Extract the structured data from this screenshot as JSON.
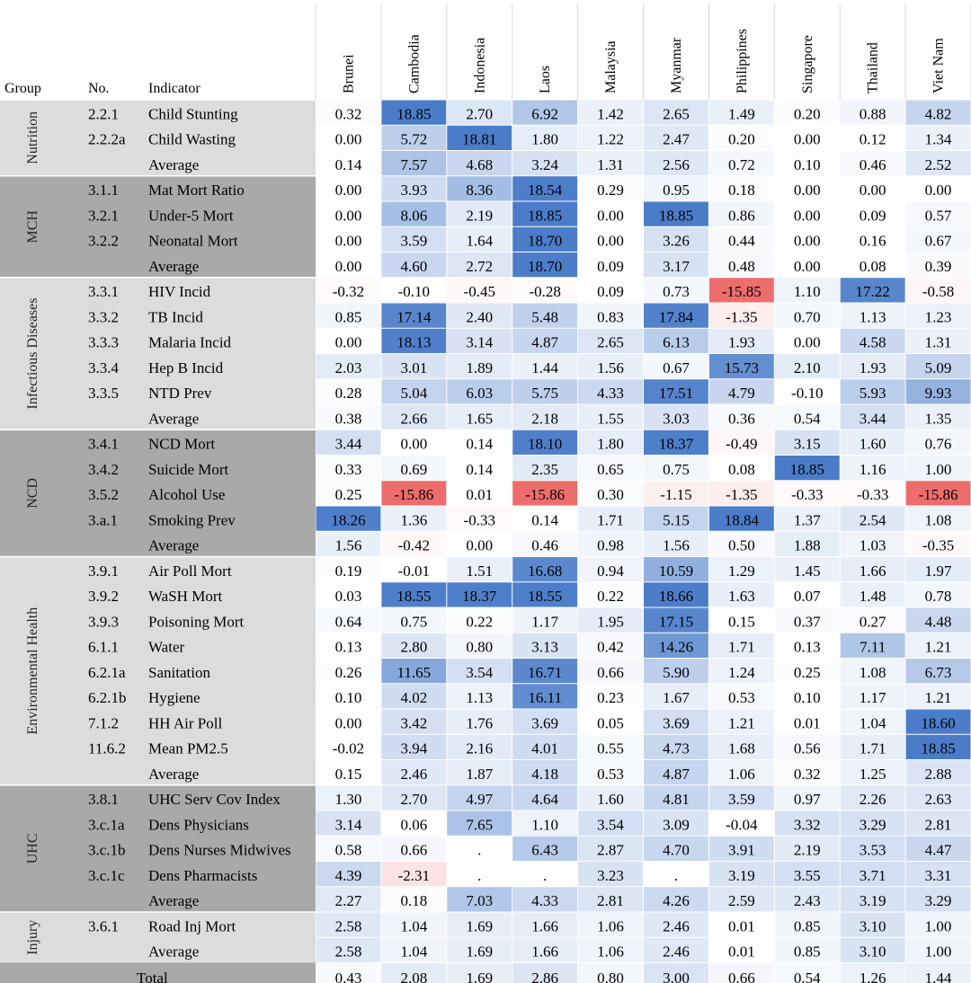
{
  "chart_data": {
    "type": "heatmap",
    "column_headers": {
      "group": "Group",
      "number": "No.",
      "indicator": "Indicator"
    },
    "countries": [
      "Brunei",
      "Cambodia",
      "Indonesia",
      "Laos",
      "Malaysia",
      "Myanmar",
      "Philippines",
      "Singapore",
      "Thailand",
      "Viet Nam"
    ],
    "groups": [
      {
        "name": "Nutrition",
        "shade": "#dcdcdc",
        "text_color": "#222222"
      },
      {
        "name": "MCH",
        "shade": "#a9a9a9",
        "text_color": "#222222"
      },
      {
        "name": "Infectious Diseases",
        "shade": "#dcdcdc",
        "text_color": "#222222"
      },
      {
        "name": "NCD",
        "shade": "#a9a9a9",
        "text_color": "#222222"
      },
      {
        "name": "Environmental Health",
        "shade": "#dcdcdc",
        "text_color": "#222222"
      },
      {
        "name": "UHC",
        "shade": "#a9a9a9",
        "text_color": "#222222"
      },
      {
        "name": "Injury",
        "shade": "#dcdcdc",
        "text_color": "#222222"
      }
    ],
    "rows": [
      {
        "group": 0,
        "no": "2.2.1",
        "indicator": "Child Stunting",
        "values": [
          "0.32",
          "18.85",
          "2.70",
          "6.92",
          "1.42",
          "2.65",
          "1.49",
          "0.20",
          "0.88",
          "4.82"
        ]
      },
      {
        "group": 0,
        "no": "2.2.2a",
        "indicator": "Child Wasting",
        "values": [
          "0.00",
          "5.72",
          "18.81",
          "1.80",
          "1.22",
          "2.47",
          "0.20",
          "0.00",
          "0.12",
          "1.34"
        ]
      },
      {
        "group": 0,
        "no": "",
        "indicator": "Average",
        "values": [
          "0.14",
          "7.57",
          "4.68",
          "3.24",
          "1.31",
          "2.56",
          "0.72",
          "0.10",
          "0.46",
          "2.52"
        ]
      },
      {
        "group": 1,
        "no": "3.1.1",
        "indicator": "Mat Mort Ratio",
        "values": [
          "0.00",
          "3.93",
          "8.36",
          "18.54",
          "0.29",
          "0.95",
          "0.18",
          "0.00",
          "0.00",
          "0.00"
        ]
      },
      {
        "group": 1,
        "no": "3.2.1",
        "indicator": "Under-5 Mort",
        "values": [
          "0.00",
          "8.06",
          "2.19",
          "18.85",
          "0.00",
          "18.85",
          "0.86",
          "0.00",
          "0.09",
          "0.57"
        ]
      },
      {
        "group": 1,
        "no": "3.2.2",
        "indicator": "Neonatal Mort",
        "values": [
          "0.00",
          "3.59",
          "1.64",
          "18.70",
          "0.00",
          "3.26",
          "0.44",
          "0.00",
          "0.16",
          "0.67"
        ]
      },
      {
        "group": 1,
        "no": "",
        "indicator": "Average",
        "values": [
          "0.00",
          "4.60",
          "2.72",
          "18.70",
          "0.09",
          "3.17",
          "0.48",
          "0.00",
          "0.08",
          "0.39"
        ]
      },
      {
        "group": 2,
        "no": "3.3.1",
        "indicator": "HIV Incid",
        "values": [
          "-0.32",
          "-0.10",
          "-0.45",
          "-0.28",
          "0.09",
          "0.73",
          "-15.85",
          "1.10",
          "17.22",
          "-0.58"
        ]
      },
      {
        "group": 2,
        "no": "3.3.2",
        "indicator": "TB Incid",
        "values": [
          "0.85",
          "17.14",
          "2.40",
          "5.48",
          "0.83",
          "17.84",
          "-1.35",
          "0.70",
          "1.13",
          "1.23"
        ]
      },
      {
        "group": 2,
        "no": "3.3.3",
        "indicator": "Malaria Incid",
        "values": [
          "0.00",
          "18.13",
          "3.14",
          "4.87",
          "2.65",
          "6.13",
          "1.93",
          "0.00",
          "4.58",
          "1.31"
        ]
      },
      {
        "group": 2,
        "no": "3.3.4",
        "indicator": "Hep B Incid",
        "values": [
          "2.03",
          "3.01",
          "1.89",
          "1.44",
          "1.56",
          "0.67",
          "15.73",
          "2.10",
          "1.93",
          "5.09"
        ]
      },
      {
        "group": 2,
        "no": "3.3.5",
        "indicator": "NTD Prev",
        "values": [
          "0.28",
          "5.04",
          "6.03",
          "5.75",
          "4.33",
          "17.51",
          "4.79",
          "-0.10",
          "5.93",
          "9.93"
        ]
      },
      {
        "group": 2,
        "no": "",
        "indicator": "Average",
        "values": [
          "0.38",
          "2.66",
          "1.65",
          "2.18",
          "1.55",
          "3.03",
          "0.36",
          "0.54",
          "3.44",
          "1.35"
        ]
      },
      {
        "group": 3,
        "no": "3.4.1",
        "indicator": "NCD Mort",
        "values": [
          "3.44",
          "0.00",
          "0.14",
          "18.10",
          "1.80",
          "18.37",
          "-0.49",
          "3.15",
          "1.60",
          "0.76"
        ]
      },
      {
        "group": 3,
        "no": "3.4.2",
        "indicator": "Suicide Mort",
        "values": [
          "0.33",
          "0.69",
          "0.14",
          "2.35",
          "0.65",
          "0.75",
          "0.08",
          "18.85",
          "1.16",
          "1.00"
        ]
      },
      {
        "group": 3,
        "no": "3.5.2",
        "indicator": "Alcohol Use",
        "values": [
          "0.25",
          "-15.86",
          "0.01",
          "-15.86",
          "0.30",
          "-1.15",
          "-1.35",
          "-0.33",
          "-0.33",
          "-15.86"
        ]
      },
      {
        "group": 3,
        "no": "3.a.1",
        "indicator": "Smoking Prev",
        "values": [
          "18.26",
          "1.36",
          "-0.33",
          "0.14",
          "1.71",
          "5.15",
          "18.84",
          "1.37",
          "2.54",
          "1.08"
        ]
      },
      {
        "group": 3,
        "no": "",
        "indicator": "Average",
        "values": [
          "1.56",
          "-0.42",
          "0.00",
          "0.46",
          "0.98",
          "1.56",
          "0.50",
          "1.88",
          "1.03",
          "-0.35"
        ]
      },
      {
        "group": 4,
        "no": "3.9.1",
        "indicator": "Air Poll Mort",
        "values": [
          "0.19",
          "-0.01",
          "1.51",
          "16.68",
          "0.94",
          "10.59",
          "1.29",
          "1.45",
          "1.66",
          "1.97"
        ]
      },
      {
        "group": 4,
        "no": "3.9.2",
        "indicator": "WaSH Mort",
        "values": [
          "0.03",
          "18.55",
          "18.37",
          "18.55",
          "0.22",
          "18.66",
          "1.63",
          "0.07",
          "1.48",
          "0.78"
        ]
      },
      {
        "group": 4,
        "no": "3.9.3",
        "indicator": "Poisoning Mort",
        "values": [
          "0.64",
          "0.75",
          "0.22",
          "1.17",
          "1.95",
          "17.15",
          "0.15",
          "0.37",
          "0.27",
          "4.48"
        ]
      },
      {
        "group": 4,
        "no": "6.1.1",
        "indicator": "Water",
        "values": [
          "0.13",
          "2.80",
          "0.80",
          "3.13",
          "0.42",
          "14.26",
          "1.71",
          "0.13",
          "7.11",
          "1.21"
        ]
      },
      {
        "group": 4,
        "no": "6.2.1a",
        "indicator": "Sanitation",
        "values": [
          "0.26",
          "11.65",
          "3.54",
          "16.71",
          "0.66",
          "5.90",
          "1.24",
          "0.25",
          "1.08",
          "6.73"
        ]
      },
      {
        "group": 4,
        "no": "6.2.1b",
        "indicator": "Hygiene",
        "values": [
          "0.10",
          "4.02",
          "1.13",
          "16.11",
          "0.23",
          "1.67",
          "0.53",
          "0.10",
          "1.17",
          "1.21"
        ]
      },
      {
        "group": 4,
        "no": "7.1.2",
        "indicator": "HH Air Poll",
        "values": [
          "0.00",
          "3.42",
          "1.76",
          "3.69",
          "0.05",
          "3.69",
          "1.21",
          "0.01",
          "1.04",
          "18.60"
        ]
      },
      {
        "group": 4,
        "no": "11.6.2",
        "indicator": "Mean PM2.5",
        "values": [
          "-0.02",
          "3.94",
          "2.16",
          "4.01",
          "0.55",
          "4.73",
          "1.68",
          "0.56",
          "1.71",
          "18.85"
        ]
      },
      {
        "group": 4,
        "no": "",
        "indicator": "Average",
        "values": [
          "0.15",
          "2.46",
          "1.87",
          "4.18",
          "0.53",
          "4.87",
          "1.06",
          "0.32",
          "1.25",
          "2.88"
        ]
      },
      {
        "group": 5,
        "no": "3.8.1",
        "indicator": "UHC Serv Cov Index",
        "values": [
          "1.30",
          "2.70",
          "4.97",
          "4.64",
          "1.60",
          "4.81",
          "3.59",
          "0.97",
          "2.26",
          "2.63"
        ]
      },
      {
        "group": 5,
        "no": "3.c.1a",
        "indicator": "Dens Physicians",
        "values": [
          "3.14",
          "0.06",
          "7.65",
          "1.10",
          "3.54",
          "3.09",
          "-0.04",
          "3.32",
          "3.29",
          "2.81"
        ]
      },
      {
        "group": 5,
        "no": "3.c.1b",
        "indicator": "Dens Nurses Midwives",
        "values": [
          "0.58",
          "0.66",
          ".",
          "6.43",
          "2.87",
          "4.70",
          "3.91",
          "2.19",
          "3.53",
          "4.47"
        ]
      },
      {
        "group": 5,
        "no": "3.c.1c",
        "indicator": "Dens Pharmacists",
        "values": [
          "4.39",
          "-2.31",
          ".",
          ".",
          "3.23",
          ".",
          "3.19",
          "3.55",
          "3.71",
          "3.31"
        ]
      },
      {
        "group": 5,
        "no": "",
        "indicator": "Average",
        "values": [
          "2.27",
          "0.18",
          "7.03",
          "4.33",
          "2.81",
          "4.26",
          "2.59",
          "2.43",
          "3.19",
          "3.29"
        ]
      },
      {
        "group": 6,
        "no": "3.6.1",
        "indicator": "Road Inj Mort",
        "values": [
          "2.58",
          "1.04",
          "1.69",
          "1.66",
          "1.06",
          "2.46",
          "0.01",
          "0.85",
          "3.10",
          "1.00"
        ]
      },
      {
        "group": 6,
        "no": "",
        "indicator": "Average",
        "values": [
          "2.58",
          "1.04",
          "1.69",
          "1.66",
          "1.06",
          "2.46",
          "0.01",
          "0.85",
          "3.10",
          "1.00"
        ]
      }
    ],
    "total": {
      "label": "Total",
      "values": [
        "0.43",
        "2.08",
        "1.69",
        "2.86",
        "0.80",
        "3.00",
        "0.66",
        "0.54",
        "1.26",
        "1.44"
      ]
    },
    "color_scale": {
      "positive": "#4a7cc9",
      "negative": "#ea5656",
      "neutral": "#ffffff",
      "total_row_shade": "#a9a9a9"
    }
  }
}
